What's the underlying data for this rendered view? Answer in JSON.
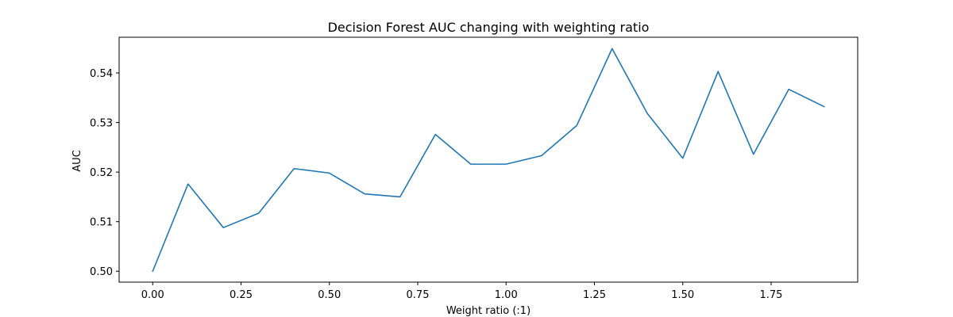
{
  "chart_data": {
    "type": "line",
    "title": "Decision Forest AUC changing with weighting ratio",
    "xlabel": "Weight ratio (:1)",
    "ylabel": "AUC",
    "xlim": [
      -0.095,
      1.995
    ],
    "ylim": [
      0.4978,
      0.5472
    ],
    "xticks": [
      0.0,
      0.25,
      0.5,
      0.75,
      1.0,
      1.25,
      1.5,
      1.75
    ],
    "xtick_labels": [
      "0.00",
      "0.25",
      "0.50",
      "0.75",
      "1.00",
      "1.25",
      "1.50",
      "1.75"
    ],
    "yticks": [
      0.5,
      0.51,
      0.52,
      0.53,
      0.54
    ],
    "ytick_labels": [
      "0.50",
      "0.51",
      "0.52",
      "0.53",
      "0.54"
    ],
    "grid": false,
    "legend": "none",
    "series": [
      {
        "color": "#1f77b4",
        "x": [
          0.0,
          0.1,
          0.2,
          0.3,
          0.4,
          0.5,
          0.6,
          0.7,
          0.8,
          0.9,
          1.0,
          1.1,
          1.2,
          1.3,
          1.4,
          1.5,
          1.6,
          1.7,
          1.8,
          1.9
        ],
        "y": [
          0.5,
          0.5176,
          0.5088,
          0.5117,
          0.5207,
          0.5198,
          0.5156,
          0.515,
          0.5276,
          0.5216,
          0.5216,
          0.5233,
          0.5294,
          0.5449,
          0.5318,
          0.5228,
          0.5403,
          0.5236,
          0.5367,
          0.5332
        ]
      }
    ]
  }
}
